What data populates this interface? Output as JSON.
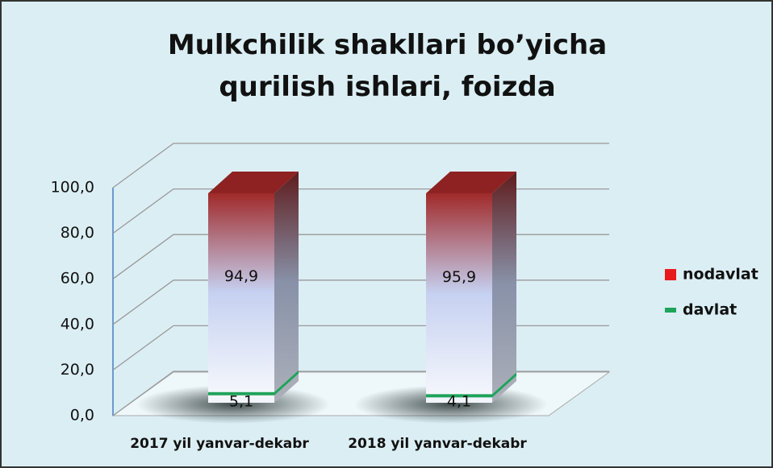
{
  "chart_data": {
    "type": "bar3d_stacked",
    "title": "Mulkchilik shakllari bo’yicha qurilish ishlari, foizda",
    "categories": [
      "2017 yil yanvar-dekabr",
      "2018 yil yanvar-dekabr"
    ],
    "series": [
      {
        "name": "davlat",
        "color": "#1fa35a",
        "values": [
          5.1,
          4.1
        ],
        "value_labels": [
          "5,1",
          "4,1"
        ]
      },
      {
        "name": "nodavlat",
        "color": "#e8191c",
        "values": [
          94.9,
          95.9
        ],
        "value_labels": [
          "94,9",
          "95,9"
        ]
      }
    ],
    "ylim": [
      0,
      100
    ],
    "yticks": [
      {
        "value": 0,
        "label": "0,0"
      },
      {
        "value": 20,
        "label": "20,0"
      },
      {
        "value": 40,
        "label": "40,0"
      },
      {
        "value": 60,
        "label": "60,0"
      },
      {
        "value": 80,
        "label": "80,0"
      },
      {
        "value": 100,
        "label": "100,0"
      }
    ],
    "grid": true,
    "legend": "right"
  }
}
